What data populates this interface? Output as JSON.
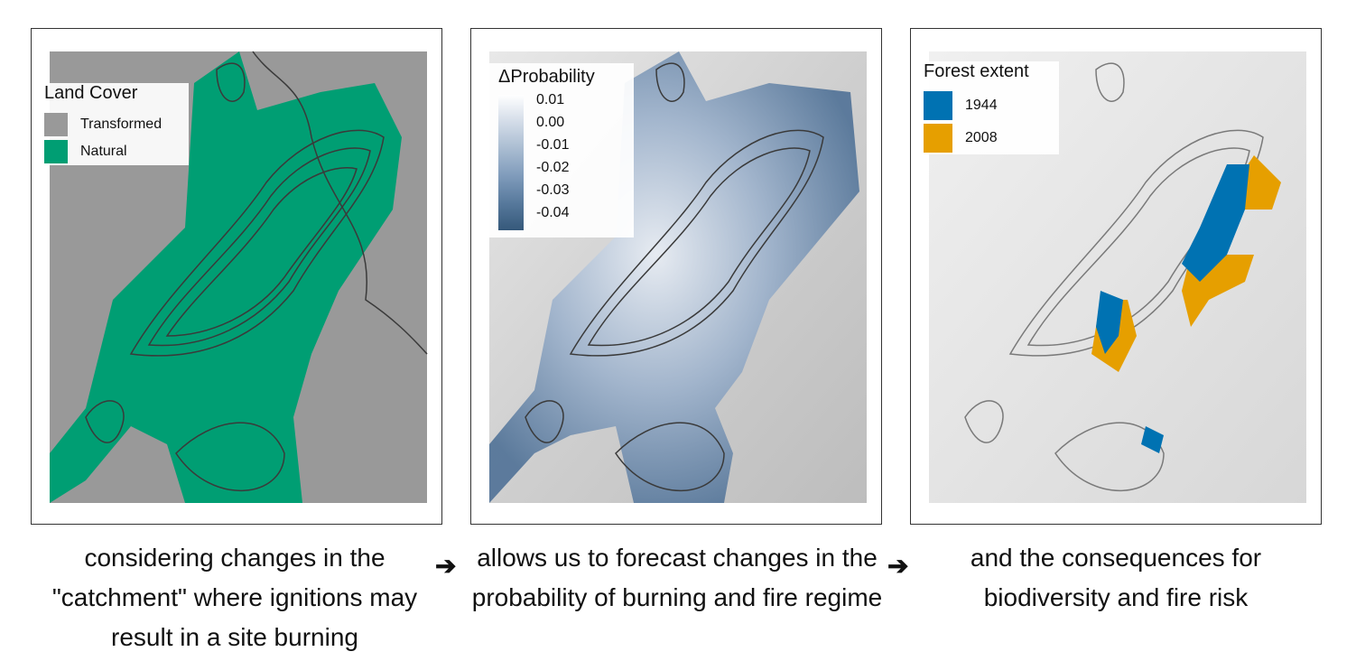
{
  "panels": [
    {
      "legend_title": "Land Cover",
      "legend_items": [
        {
          "label": "Transformed",
          "color": "#999999"
        },
        {
          "label": "Natural",
          "color": "#009E73"
        }
      ],
      "caption": "considering changes in the \"catchment\" where ignitions may result in a site burning"
    },
    {
      "legend_title": "ΔProbability",
      "colorbar_ticks": [
        "0.01",
        "0.00",
        "-0.01",
        "-0.02",
        "-0.03",
        "-0.04"
      ],
      "colorbar_colors": {
        "high": "#ffffff",
        "low": "#35587a"
      },
      "caption": "allows us to forecast changes in the probability of burning and fire regime"
    },
    {
      "legend_title": "Forest extent",
      "legend_items": [
        {
          "label": "1944",
          "color": "#0072B2"
        },
        {
          "label": "2008",
          "color": "#E69F00"
        }
      ],
      "caption": "and the consequences for biodiversity and fire risk"
    }
  ],
  "arrows": [
    "➔",
    "➔"
  ],
  "colors": {
    "contour": "#3a3a3a",
    "hillshade": "#cfcfcf",
    "transformed": "#999999",
    "natural": "#009E73"
  }
}
